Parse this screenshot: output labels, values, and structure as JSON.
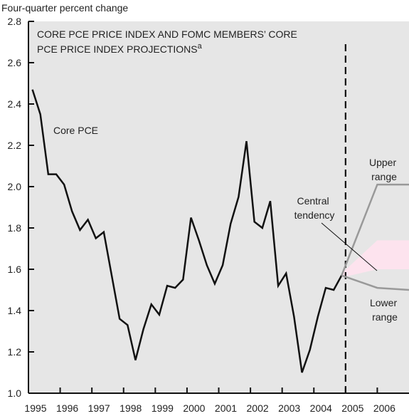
{
  "chart_data": {
    "type": "line",
    "y_axis_label": "Four-quarter percent change",
    "title": [
      "CORE PCE PRICE INDEX AND FOMC MEMBERS’ CORE",
      "PCE PRICE INDEX PROJECTIONS"
    ],
    "title_note": "a",
    "xlim": [
      1995,
      2007
    ],
    "xticks": [
      1995,
      1996,
      1997,
      1998,
      1999,
      2000,
      2001,
      2002,
      2003,
      2004,
      2005,
      2006
    ],
    "ylim": [
      1.0,
      2.8
    ],
    "yticks": [
      {
        "value": 1.0,
        "label": "1.0"
      },
      1.2,
      1.4,
      1.6,
      1.8,
      {
        "value": 2.0,
        "label": "2.0"
      },
      2.2,
      2.4,
      2.6,
      2.8
    ],
    "projection_start": 2005,
    "series": [
      {
        "name": "Core PCE",
        "color": "#111111",
        "x": [
          1995.125,
          1995.375,
          1995.625,
          1995.875,
          1996.125,
          1996.375,
          1996.625,
          1996.875,
          1997.125,
          1997.375,
          1997.625,
          1997.875,
          1998.125,
          1998.375,
          1998.625,
          1998.875,
          1999.125,
          1999.375,
          1999.625,
          1999.875,
          2000.125,
          2000.375,
          2000.625,
          2000.875,
          2001.125,
          2001.375,
          2001.625,
          2001.875,
          2002.125,
          2002.375,
          2002.625,
          2002.875,
          2003.125,
          2003.375,
          2003.625,
          2003.875,
          2004.125,
          2004.375,
          2004.625,
          2004.875
        ],
        "values": [
          2.47,
          2.35,
          2.06,
          2.06,
          2.01,
          1.88,
          1.79,
          1.84,
          1.75,
          1.78,
          1.57,
          1.36,
          1.33,
          1.16,
          1.31,
          1.43,
          1.38,
          1.52,
          1.51,
          1.55,
          1.85,
          1.74,
          1.62,
          1.53,
          1.62,
          1.82,
          1.95,
          2.22,
          1.83,
          1.8,
          1.93,
          1.52,
          1.58,
          1.37,
          1.1,
          1.21,
          1.37,
          1.51,
          1.5,
          1.57
        ]
      },
      {
        "name": "Upper range",
        "color": "#999999",
        "x": [
          2004.875,
          2006,
          2007
        ],
        "values": [
          1.57,
          2.01,
          2.01
        ]
      },
      {
        "name": "Lower range",
        "color": "#999999",
        "x": [
          2004.875,
          2006,
          2007
        ],
        "values": [
          1.57,
          1.51,
          1.5
        ]
      }
    ],
    "band": {
      "name": "Central tendency",
      "color": "#fde3ee",
      "label_color": "#e0218a",
      "x": [
        2004.875,
        2006,
        2007
      ],
      "high": [
        1.58,
        1.74,
        1.74
      ],
      "low": [
        1.56,
        1.6,
        1.6
      ]
    }
  }
}
